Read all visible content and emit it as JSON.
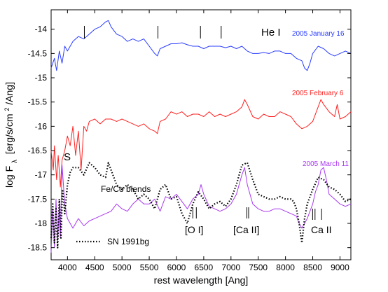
{
  "chart_data": {
    "type": "line",
    "title": "",
    "xlabel": "rest wavelength [Ang]",
    "ylabel_parts": {
      "main": "log F",
      "sub": "λ",
      "units": "[erg/s/cm",
      "sup": "2",
      "units_end": "/Ang]"
    },
    "xlim": [
      3700,
      9200
    ],
    "ylim": [
      -18.75,
      -13.6
    ],
    "xticks": [
      4000,
      4500,
      5000,
      5500,
      6000,
      6500,
      7000,
      7500,
      8000,
      8500,
      9000
    ],
    "yticks": [
      -14,
      -14.5,
      -15,
      -15.5,
      -16,
      -16.5,
      -17,
      -17.5,
      -18,
      -18.5
    ],
    "grid": false,
    "series": [
      {
        "name": "2005 January 16",
        "color": "#2a3cff",
        "style": "solid",
        "points": [
          [
            3700,
            -14.8
          ],
          [
            3760,
            -14.6
          ],
          [
            3800,
            -14.85
          ],
          [
            3850,
            -14.45
          ],
          [
            3900,
            -14.7
          ],
          [
            3950,
            -14.35
          ],
          [
            4000,
            -14.45
          ],
          [
            4100,
            -14.25
          ],
          [
            4200,
            -14.15
          ],
          [
            4300,
            -14.2
          ],
          [
            4400,
            -14.1
          ],
          [
            4500,
            -14.0
          ],
          [
            4600,
            -13.95
          ],
          [
            4700,
            -13.85
          ],
          [
            4750,
            -13.82
          ],
          [
            4800,
            -13.95
          ],
          [
            4900,
            -14.1
          ],
          [
            5000,
            -14.15
          ],
          [
            5100,
            -14.25
          ],
          [
            5200,
            -14.2
          ],
          [
            5300,
            -14.25
          ],
          [
            5400,
            -14.2
          ],
          [
            5500,
            -14.35
          ],
          [
            5600,
            -14.5
          ],
          [
            5650,
            -14.55
          ],
          [
            5700,
            -14.4
          ],
          [
            5800,
            -14.35
          ],
          [
            5900,
            -14.3
          ],
          [
            6000,
            -14.3
          ],
          [
            6100,
            -14.28
          ],
          [
            6200,
            -14.32
          ],
          [
            6300,
            -14.35
          ],
          [
            6400,
            -14.35
          ],
          [
            6500,
            -14.4
          ],
          [
            6600,
            -14.35
          ],
          [
            6700,
            -14.35
          ],
          [
            6800,
            -14.35
          ],
          [
            6900,
            -14.38
          ],
          [
            7000,
            -14.35
          ],
          [
            7100,
            -14.4
          ],
          [
            7200,
            -14.35
          ],
          [
            7300,
            -14.45
          ],
          [
            7400,
            -14.5
          ],
          [
            7500,
            -14.5
          ],
          [
            7600,
            -14.48
          ],
          [
            7700,
            -14.5
          ],
          [
            7800,
            -14.45
          ],
          [
            7900,
            -14.45
          ],
          [
            8000,
            -14.5
          ],
          [
            8100,
            -14.5
          ],
          [
            8200,
            -14.6
          ],
          [
            8300,
            -14.65
          ],
          [
            8350,
            -14.8
          ],
          [
            8400,
            -14.85
          ],
          [
            8450,
            -14.7
          ],
          [
            8500,
            -14.5
          ],
          [
            8600,
            -14.35
          ],
          [
            8700,
            -14.4
          ],
          [
            8800,
            -14.5
          ],
          [
            8900,
            -14.55
          ],
          [
            9000,
            -14.5
          ],
          [
            9100,
            -14.45
          ],
          [
            9200,
            -14.5
          ]
        ]
      },
      {
        "name": "2005 February 6",
        "color": "#ff2020",
        "style": "solid",
        "points": [
          [
            3700,
            -16.5
          ],
          [
            3740,
            -16.9
          ],
          [
            3760,
            -16.4
          ],
          [
            3800,
            -17.1
          ],
          [
            3830,
            -16.6
          ],
          [
            3870,
            -17.25
          ],
          [
            3900,
            -16.7
          ],
          [
            3950,
            -16.5
          ],
          [
            4000,
            -16.2
          ],
          [
            4050,
            -16.4
          ],
          [
            4100,
            -16.0
          ],
          [
            4150,
            -16.6
          ],
          [
            4200,
            -16.1
          ],
          [
            4250,
            -16.9
          ],
          [
            4300,
            -16.0
          ],
          [
            4350,
            -16.1
          ],
          [
            4400,
            -15.9
          ],
          [
            4500,
            -15.85
          ],
          [
            4600,
            -15.95
          ],
          [
            4700,
            -15.85
          ],
          [
            4800,
            -15.85
          ],
          [
            4900,
            -15.9
          ],
          [
            5000,
            -15.85
          ],
          [
            5100,
            -15.9
          ],
          [
            5200,
            -15.95
          ],
          [
            5300,
            -16.0
          ],
          [
            5400,
            -15.95
          ],
          [
            5500,
            -16.05
          ],
          [
            5600,
            -16.1
          ],
          [
            5650,
            -16.15
          ],
          [
            5700,
            -15.9
          ],
          [
            5800,
            -15.85
          ],
          [
            5900,
            -15.7
          ],
          [
            6000,
            -15.75
          ],
          [
            6100,
            -15.7
          ],
          [
            6200,
            -15.8
          ],
          [
            6300,
            -15.75
          ],
          [
            6400,
            -15.75
          ],
          [
            6500,
            -15.8
          ],
          [
            6600,
            -15.7
          ],
          [
            6700,
            -15.8
          ],
          [
            6800,
            -15.75
          ],
          [
            6900,
            -15.8
          ],
          [
            7000,
            -15.75
          ],
          [
            7100,
            -15.7
          ],
          [
            7200,
            -15.6
          ],
          [
            7250,
            -15.45
          ],
          [
            7300,
            -15.55
          ],
          [
            7400,
            -15.8
          ],
          [
            7500,
            -15.85
          ],
          [
            7600,
            -15.75
          ],
          [
            7700,
            -15.8
          ],
          [
            7800,
            -15.8
          ],
          [
            7900,
            -15.7
          ],
          [
            8000,
            -15.75
          ],
          [
            8100,
            -15.8
          ],
          [
            8200,
            -15.95
          ],
          [
            8300,
            -16.05
          ],
          [
            8400,
            -16.0
          ],
          [
            8500,
            -15.9
          ],
          [
            8600,
            -15.6
          ],
          [
            8650,
            -15.45
          ],
          [
            8700,
            -15.55
          ],
          [
            8800,
            -15.7
          ],
          [
            8900,
            -15.8
          ],
          [
            8950,
            -15.55
          ],
          [
            9000,
            -15.85
          ],
          [
            9100,
            -15.8
          ],
          [
            9200,
            -15.7
          ]
        ]
      },
      {
        "name": "2005 March 11",
        "color": "#a839f0",
        "style": "solid",
        "points": [
          [
            3700,
            -18.6
          ],
          [
            3730,
            -17.7
          ],
          [
            3760,
            -18.5
          ],
          [
            3790,
            -17.5
          ],
          [
            3820,
            -18.4
          ],
          [
            3850,
            -17.6
          ],
          [
            3870,
            -18.3
          ],
          [
            3900,
            -16.8
          ],
          [
            3950,
            -17.6
          ],
          [
            4000,
            -17.9
          ],
          [
            4100,
            -18.1
          ],
          [
            4200,
            -17.9
          ],
          [
            4300,
            -18.05
          ],
          [
            4400,
            -17.95
          ],
          [
            4500,
            -17.9
          ],
          [
            4600,
            -17.85
          ],
          [
            4700,
            -17.8
          ],
          [
            4800,
            -17.75
          ],
          [
            4900,
            -17.6
          ],
          [
            5000,
            -17.7
          ],
          [
            5100,
            -17.75
          ],
          [
            5200,
            -17.6
          ],
          [
            5300,
            -17.5
          ],
          [
            5400,
            -17.6
          ],
          [
            5500,
            -17.6
          ],
          [
            5600,
            -17.5
          ],
          [
            5700,
            -17.75
          ],
          [
            5800,
            -17.45
          ],
          [
            5900,
            -17.5
          ],
          [
            6000,
            -17.4
          ],
          [
            6100,
            -17.55
          ],
          [
            6200,
            -17.7
          ],
          [
            6300,
            -17.5
          ],
          [
            6400,
            -17.4
          ],
          [
            6450,
            -17.2
          ],
          [
            6500,
            -17.4
          ],
          [
            6600,
            -17.65
          ],
          [
            6700,
            -17.7
          ],
          [
            6800,
            -17.75
          ],
          [
            6900,
            -17.7
          ],
          [
            7000,
            -17.6
          ],
          [
            7100,
            -17.4
          ],
          [
            7200,
            -17.0
          ],
          [
            7250,
            -16.85
          ],
          [
            7300,
            -17.2
          ],
          [
            7400,
            -17.6
          ],
          [
            7500,
            -17.7
          ],
          [
            7600,
            -17.75
          ],
          [
            7700,
            -17.75
          ],
          [
            7800,
            -17.7
          ],
          [
            7900,
            -17.7
          ],
          [
            8000,
            -17.75
          ],
          [
            8100,
            -17.8
          ],
          [
            8200,
            -17.85
          ],
          [
            8250,
            -18.0
          ],
          [
            8300,
            -18.1
          ],
          [
            8400,
            -17.9
          ],
          [
            8500,
            -17.6
          ],
          [
            8550,
            -17.35
          ],
          [
            8600,
            -17.2
          ],
          [
            8650,
            -16.9
          ],
          [
            8700,
            -16.85
          ],
          [
            8750,
            -17.1
          ],
          [
            8800,
            -17.4
          ],
          [
            8900,
            -17.5
          ],
          [
            9000,
            -17.6
          ],
          [
            9100,
            -17.65
          ],
          [
            9200,
            -17.6
          ]
        ]
      },
      {
        "name": "SN 1991bg",
        "color": "#000000",
        "style": "dotted",
        "points": [
          [
            3700,
            -18.3
          ],
          [
            3730,
            -17.6
          ],
          [
            3760,
            -18.4
          ],
          [
            3790,
            -17.7
          ],
          [
            3820,
            -18.5
          ],
          [
            3850,
            -17.5
          ],
          [
            3880,
            -18.3
          ],
          [
            3910,
            -17.3
          ],
          [
            3950,
            -17.8
          ],
          [
            4000,
            -17.2
          ],
          [
            4050,
            -16.95
          ],
          [
            4100,
            -16.85
          ],
          [
            4200,
            -16.85
          ],
          [
            4300,
            -17.0
          ],
          [
            4400,
            -16.75
          ],
          [
            4500,
            -16.85
          ],
          [
            4600,
            -17.0
          ],
          [
            4700,
            -17.05
          ],
          [
            4750,
            -16.75
          ],
          [
            4800,
            -16.9
          ],
          [
            4900,
            -17.2
          ],
          [
            5000,
            -17.3
          ],
          [
            5100,
            -17.2
          ],
          [
            5200,
            -17.3
          ],
          [
            5300,
            -17.5
          ],
          [
            5400,
            -17.4
          ],
          [
            5500,
            -17.5
          ],
          [
            5600,
            -17.7
          ],
          [
            5700,
            -17.3
          ],
          [
            5800,
            -17.2
          ],
          [
            5900,
            -17.5
          ],
          [
            6000,
            -17.45
          ],
          [
            6100,
            -17.8
          ],
          [
            6200,
            -18.0
          ],
          [
            6300,
            -17.6
          ],
          [
            6400,
            -17.35
          ],
          [
            6500,
            -17.5
          ],
          [
            6600,
            -17.7
          ],
          [
            6700,
            -17.6
          ],
          [
            6800,
            -17.55
          ],
          [
            6900,
            -17.65
          ],
          [
            7000,
            -17.5
          ],
          [
            7100,
            -17.2
          ],
          [
            7200,
            -16.8
          ],
          [
            7300,
            -16.75
          ],
          [
            7400,
            -17.1
          ],
          [
            7500,
            -17.4
          ],
          [
            7600,
            -17.45
          ],
          [
            7700,
            -17.5
          ],
          [
            7800,
            -17.5
          ],
          [
            7900,
            -17.45
          ],
          [
            8000,
            -17.5
          ],
          [
            8100,
            -17.5
          ],
          [
            8150,
            -17.55
          ],
          [
            8200,
            -17.7
          ],
          [
            8250,
            -18.0
          ],
          [
            8300,
            -18.4
          ],
          [
            8350,
            -17.9
          ],
          [
            8400,
            -17.6
          ],
          [
            8500,
            -17.3
          ],
          [
            8600,
            -17.05
          ],
          [
            8700,
            -17.1
          ],
          [
            8800,
            -17.25
          ],
          [
            8900,
            -17.3
          ],
          [
            9000,
            -17.4
          ],
          [
            9100,
            -17.55
          ],
          [
            9200,
            -17.5
          ]
        ]
      }
    ],
    "date_labels": [
      {
        "text": "2005 January 16",
        "color": "#2a3cff"
      },
      {
        "text": "2005 February 6",
        "color": "#ff2020"
      },
      {
        "text": "2005 March 11",
        "color": "#a839f0"
      }
    ],
    "legend": {
      "label": "SN 1991bg",
      "placement": "bottom-left"
    },
    "annotations": {
      "he": "He I",
      "s": "S",
      "fe_co": "Fe/Co blends",
      "oi": "[O I]",
      "ca_ii_forbidden": "[Ca II]",
      "ca_ii": "Ca II"
    },
    "line_markers": {
      "he_i": [
        4310,
        5660,
        6440,
        6820
      ],
      "o_i": [
        6300,
        6364
      ],
      "ca_ii_forbidden": [
        7291,
        7324
      ],
      "ca_ii": [
        8498,
        8542,
        8662
      ]
    }
  }
}
